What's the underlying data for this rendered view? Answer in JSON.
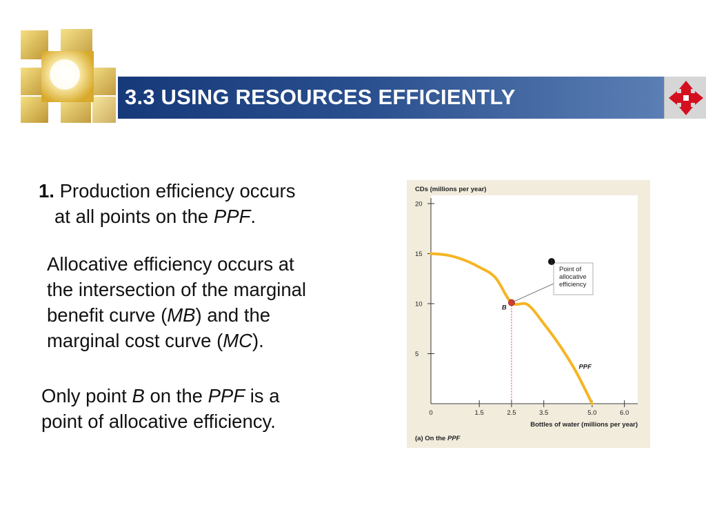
{
  "slide": {
    "title": "3.3 USING RESOURCES EFFICIENTLY"
  },
  "icons": {
    "logo": "golden-squares-logo-icon",
    "nav": "four-way-arrows-icon",
    "nav_color": "#d40f1f"
  },
  "colors": {
    "title_bar": "#16397a",
    "chart_background": "#f1ecdc",
    "curve": "#f5b523",
    "point": "#e23b2e"
  },
  "text": {
    "p1_number": "1.",
    "p1_a": "Production efficiency occurs",
    "p1_b": "at all points on the",
    "p1_ppf": "PPF",
    "p1_end": ".",
    "p2_a": "Allocative efficiency occurs at",
    "p2_b": "the intersection of the marginal",
    "p2_c": "benefit curve (",
    "p2_mb": "MB",
    "p2_d": ") and the",
    "p2_e": "marginal cost curve (",
    "p2_mc": "MC",
    "p2_f": ").",
    "p3_a": "Only point",
    "p3_b": "B",
    "p3_c": "on the",
    "p3_ppf": "PPF",
    "p3_d": "is a",
    "p3_e": "point of allocative efficiency."
  },
  "chart_data": {
    "type": "line",
    "ylabel": "CDs (millions per year)",
    "xlabel": "Bottles of water (millions per year)",
    "caption_prefix": "(a) On the",
    "caption_ppf": "PPF",
    "xlim": [
      0,
      6.2
    ],
    "ylim": [
      0,
      20
    ],
    "x_ticks": [
      1.5,
      2.5,
      3.5,
      5.0,
      6.0
    ],
    "x_tick_labels": [
      "1.5",
      "2.5",
      "3.5",
      "5.0",
      "6.0"
    ],
    "x_origin_label": "0",
    "y_ticks": [
      5,
      10,
      15,
      20
    ],
    "y_tick_labels": [
      "5",
      "10",
      "15",
      "20"
    ],
    "series": [
      {
        "name": "PPF",
        "x": [
          0,
          0.5,
          1.0,
          1.5,
          2.0,
          2.5,
          3.0,
          3.5,
          4.0,
          4.5,
          5.0
        ],
        "y": [
          15,
          14.85,
          14.4,
          13.65,
          12.6,
          10.1,
          9.9,
          8.0,
          5.8,
          3.2,
          0
        ]
      }
    ],
    "point": {
      "label": "B",
      "x": 2.5,
      "y": 10.1
    },
    "annotation": {
      "number": "1",
      "lines": [
        "Point of",
        "allocative",
        "efficiency"
      ]
    },
    "curve_label": "PPF",
    "grid": false
  }
}
